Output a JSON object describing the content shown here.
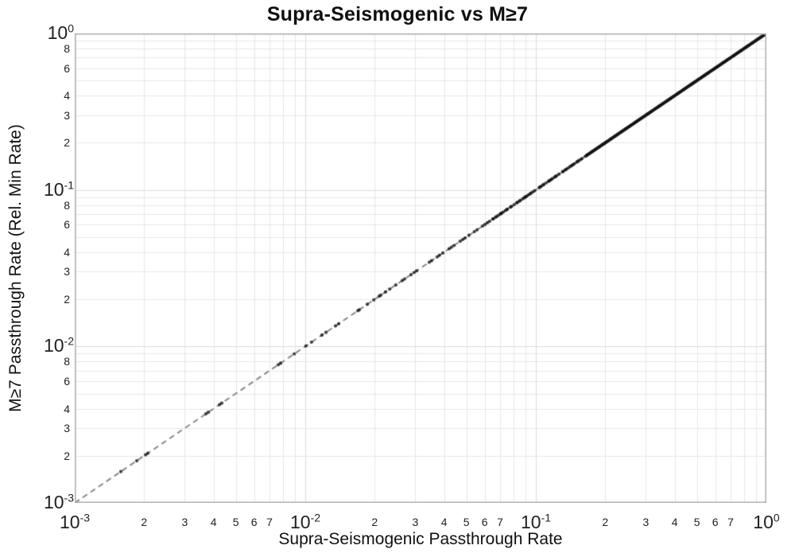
{
  "chart_data": {
    "type": "scatter",
    "title": "Supra-Seismogenic vs M≥7",
    "xlabel": "Supra-Seismogenic Passthrough Rate",
    "ylabel": "M≥7 Passthrough Rate (Rel. Min Rate)",
    "xscale": "log",
    "yscale": "log",
    "xlim": [
      0.001,
      1.0
    ],
    "ylim": [
      0.001,
      1.0
    ],
    "grid": true,
    "legend": "none",
    "relationship": "all points lie on the identity line y = x",
    "identity_line": {
      "show": true,
      "style": "dashed",
      "dash": [
        7,
        5
      ],
      "width": 2,
      "color": "#8a8a8a"
    },
    "marker": {
      "shape": "circle",
      "radius": 2.1,
      "color": "#141414",
      "opacity": 0.8
    },
    "points_log10_x_equals_y": [
      -2.8,
      -2.731,
      -2.693,
      -2.683,
      -2.431,
      -2.421,
      -2.372,
      -2.362,
      -2.117,
      -2.107,
      -2.048,
      -1.997,
      -1.973,
      -1.928,
      -1.91,
      -1.869,
      -1.855,
      -1.772,
      -1.766,
      -1.731,
      -1.703,
      -1.679,
      -1.672,
      -1.652,
      -1.634,
      -1.607,
      -1.579,
      -1.569,
      -1.541,
      -1.528,
      -1.517,
      -1.462,
      -1.452,
      -1.428,
      -1.418,
      -1.403,
      -1.376,
      -1.366,
      -1.355,
      -1.328,
      -1.317,
      -1.307,
      -1.29,
      -1.266,
      -1.255,
      -1.231,
      -1.221,
      -1.21
    ],
    "dense_segments": [
      {
        "log10_from": -1.2,
        "log10_to": -0.78,
        "count": 62,
        "jitter": 1.1
      },
      {
        "log10_from": -0.78,
        "log10_to": 0.0,
        "count": 240,
        "jitter": 0.25
      }
    ],
    "x_axis": {
      "format": "power10",
      "major_exponents": [
        -3,
        -2,
        -1,
        0
      ],
      "major_tick_labels": [
        "10⁻³",
        "10⁻²",
        "10⁻¹",
        "10⁰"
      ],
      "minor_tick_labels": [
        2,
        3,
        4,
        5,
        6,
        7
      ]
    },
    "y_axis": {
      "format": "power10",
      "major_exponents": [
        0,
        -1,
        -2,
        -3
      ],
      "major_tick_labels": [
        "10⁰",
        "10⁻¹",
        "10⁻²",
        "10⁻³"
      ],
      "minor_tick_labels": [
        8,
        6,
        4,
        3,
        2
      ]
    },
    "colors": {
      "background": "#ffffff",
      "grid_minor": "#e8e8e8",
      "grid_major": "#dcdcdc",
      "plot_border": "#b0b0b0",
      "tick_label": "#222222",
      "title": "#0f0f0f",
      "axis_title": "#111111"
    }
  }
}
